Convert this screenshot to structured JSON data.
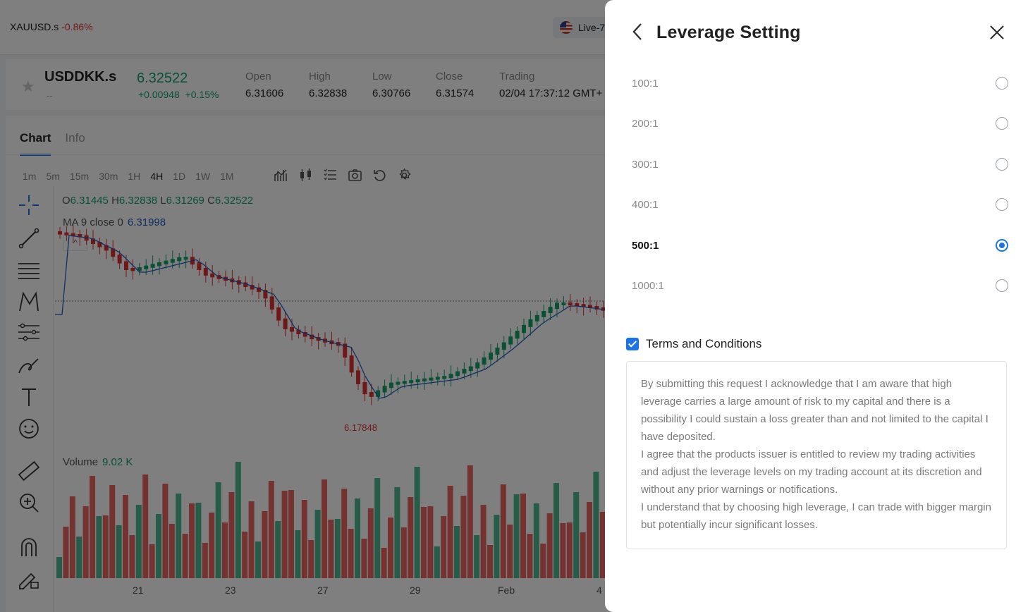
{
  "app": {
    "top_symbol": "XAUUSD.s",
    "top_symbol_change": "-0.86%",
    "account": "Live-7"
  },
  "quote": {
    "symbol": "USDDKK.s",
    "subtitle": "--",
    "price": "6.32522",
    "change": "+0.00948",
    "change_pct": "+0.15%",
    "stats": [
      {
        "label": "Open",
        "value": "6.31606"
      },
      {
        "label": "High",
        "value": "6.32838"
      },
      {
        "label": "Low",
        "value": "6.30766"
      },
      {
        "label": "Close",
        "value": "6.31574"
      },
      {
        "label": "Trading",
        "value": "02/04 17:37:12 GMT+"
      }
    ]
  },
  "tabs": [
    "Chart",
    "Info"
  ],
  "intervals": [
    "1m",
    "5m",
    "15m",
    "30m",
    "1H",
    "4H",
    "1D",
    "1W",
    "1M"
  ],
  "active_interval": "4H",
  "chart": {
    "ohlc": {
      "o_label": "O",
      "o": "6.31445",
      "h_label": "H",
      "h": "6.32838",
      "l_label": "L",
      "l": "6.31269",
      "c_label": "C",
      "c": "6.32522"
    },
    "ma_label": "MA 9 close 0",
    "ma_value": "6.31998",
    "low_marker": "6.17848",
    "volume_label": "Volume",
    "volume_value": "9.02 K",
    "x_ticks": [
      "21",
      "23",
      "27",
      "29",
      "Feb",
      "4"
    ]
  },
  "drawer": {
    "title": "Leverage Setting",
    "options": [
      "100:1",
      "200:1",
      "300:1",
      "400:1",
      "500:1",
      "1000:1"
    ],
    "selected": "500:1",
    "terms_label": "Terms and Conditions",
    "terms_checked": true,
    "terms_paragraphs": [
      "By submitting this request I acknowledge that I am aware that high leverage carries a large amount of risk to my capital and there is a possibility I could sustain a loss greater than and not limited to the capital I have deposited.",
      "I agree that the products issuer is entitled to review my trading activities and adjust the leverage levels on my trading account at its discretion and without any prior warnings or notifications.",
      "I understand that by choosing high leverage, I can trade with bigger margin but potentially incur significant losses."
    ],
    "accent": "#1a73e8"
  },
  "colors": {
    "up": "#12a26b",
    "down": "#e0312f",
    "ma": "#1f5fbf"
  }
}
